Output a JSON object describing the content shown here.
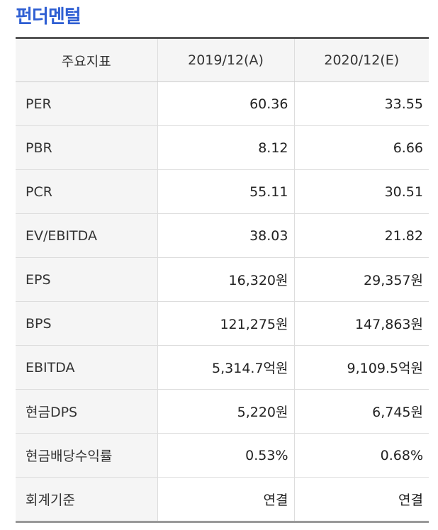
{
  "section": {
    "title": "펀더멘털"
  },
  "table": {
    "headers": [
      "주요지표",
      "2019/12(A)",
      "2020/12(E)"
    ],
    "rows": [
      {
        "label": "PER",
        "v2019": "60.36",
        "v2020": "33.55"
      },
      {
        "label": "PBR",
        "v2019": "8.12",
        "v2020": "6.66"
      },
      {
        "label": "PCR",
        "v2019": "55.11",
        "v2020": "30.51"
      },
      {
        "label": "EV/EBITDA",
        "v2019": "38.03",
        "v2020": "21.82"
      },
      {
        "label": "EPS",
        "v2019": "16,320원",
        "v2020": "29,357원"
      },
      {
        "label": "BPS",
        "v2019": "121,275원",
        "v2020": "147,863원"
      },
      {
        "label": "EBITDA",
        "v2019": "5,314.7억원",
        "v2020": "9,109.5억원"
      },
      {
        "label": "현금DPS",
        "v2019": "5,220원",
        "v2020": "6,745원"
      },
      {
        "label": "현금배당수익률",
        "v2019": "0.53%",
        "v2020": "0.68%"
      },
      {
        "label": "회계기준",
        "v2019": "연결",
        "v2020": "연결"
      }
    ]
  },
  "colors": {
    "title": "#2f5fd3",
    "header_bg": "#f5f5f5",
    "border": "#dddddd"
  }
}
